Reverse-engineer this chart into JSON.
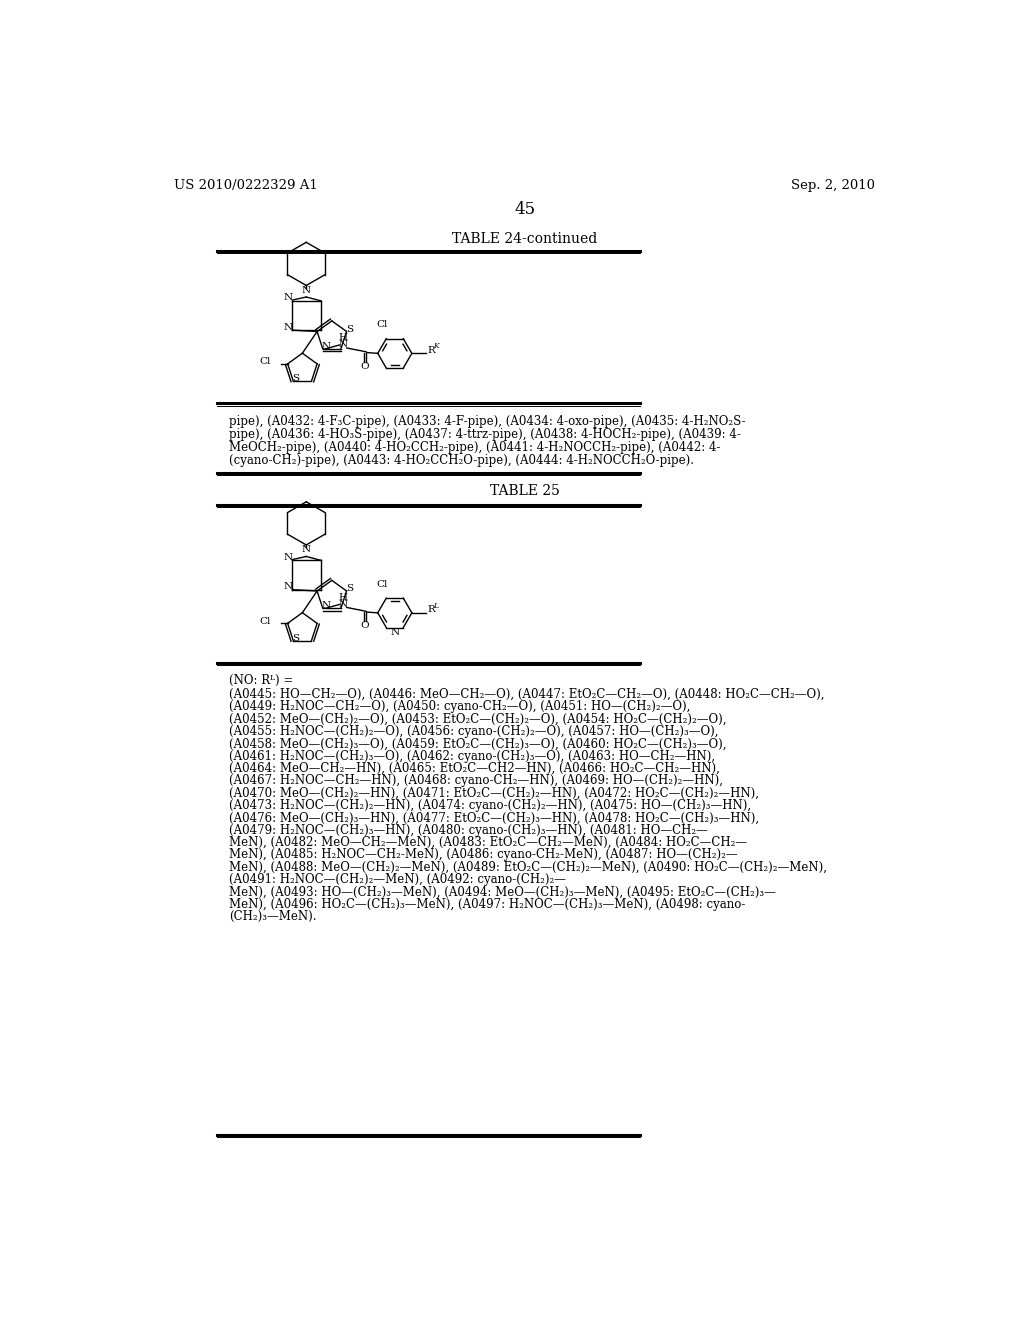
{
  "header_left": "US 2010/0222329 A1",
  "header_right": "Sep. 2, 2010",
  "page_number": "45",
  "table1_title": "TABLE 24-continued",
  "table2_title": "TABLE 25",
  "table1_lines": [
    "pipe), (A0432: 4-F₃C-pipe), (A0433: 4-F-pipe), (A0434: 4-oxo-pipe), (A0435: 4-H₂NO₂S-",
    "pipe), (A0436: 4-HO₃S-pipe), (A0437: 4-ttrz-pipe), (A0438: 4-HOCH₂-pipe), (A0439: 4-",
    "MeOCH₂-pipe), (A0440: 4-HO₂CCH₂-pipe), (A0441: 4-H₂NOCCH₂-pipe), (A0442: 4-",
    "(cyano-CH₂)-pipe), (A0443: 4-HO₂CCH₂O-pipe), (A0444: 4-H₂NOCCH₂O-pipe)."
  ],
  "table2_header": "(NO: Rᴸ) =",
  "table2_text_lines": [
    "(A0445: HO—CH₂—O), (A0446: MeO—CH₂—O), (A0447: EtO₂C—CH₂—O), (A0448: HO₂C—CH₂—O),",
    "(A0449: H₂NOC—CH₂—O), (A0450: cyano-CH₂—O), (A0451: HO—(CH₂)₂—O),",
    "(A0452: MeO—(CH₂)₂—O), (A0453: EtO₂C—(CH₂)₂—O), (A0454: HO₂C—(CH₂)₂—O),",
    "(A0455: H₂NOC—(CH₂)₂—O), (A0456: cyano-(CH₂)₂—O), (A0457: HO—(CH₂)₃—O),",
    "(A0458: MeO—(CH₂)₃—O), (A0459: EtO₂C—(CH₂)₃—O), (A0460: HO₂C—(CH₂)₃—O),",
    "(A0461: H₂NOC—(CH₂)₃—O), (A0462: cyano-(CH₂)₃—O), (A0463: HO—CH₂—HN),",
    "(A0464: MeO—CH₂—HN), (A0465: EtO₂C—CH2—HN), (A0466: HO₂C—CH₂—HN),",
    "(A0467: H₂NOC—CH₂—HN), (A0468: cyano-CH₂—HN), (A0469: HO—(CH₂)₂—HN),",
    "(A0470: MeO—(CH₂)₂—HN), (A0471: EtO₂C—(CH₂)₂—HN), (A0472: HO₂C—(CH₂)₂—HN),",
    "(A0473: H₂NOC—(CH₂)₂—HN), (A0474: cyano-(CH₂)₂—HN), (A0475: HO—(CH₂)₃—HN),",
    "(A0476: MeO—(CH₂)₃—HN), (A0477: EtO₂C—(CH₂)₃—HN), (A0478: HO₂C—(CH₂)₃—HN),",
    "(A0479: H₂NOC—(CH₂)₃—HN), (A0480: cyano-(CH₂)₃—HN), (A0481: HO—CH₂—",
    "MeN), (A0482: MeO—CH₂—MeN), (A0483: EtO₂C—CH₂—MeN), (A0484: HO₂C—CH₂—",
    "MeN), (A0485: H₂NOC—CH₂-MeN), (A0486: cyano-CH₂-MeN), (A0487: HO—(CH₂)₂—",
    "MeN), (A0488: MeO—(CH₂)₂—MeN), (A0489: EtO₂C—(CH₂)₂—MeN), (A0490: HO₂C—(CH₂)₂—MeN),",
    "(A0491: H₂NOC—(CH₂)₂—MeN), (A0492: cyano-(CH₂)₂—",
    "MeN), (A0493: HO—(CH₂)₃—MeN), (A0494: MeO—(CH₂)₃—MeN), (A0495: EtO₂C—(CH₂)₃—",
    "MeN), (A0496: HO₂C—(CH₂)₃—MeN), (A0497: H₂NOC—(CH₂)₃—MeN), (A0498: cyano-",
    "(CH₂)₃—MeN)."
  ],
  "bg_color": "#ffffff",
  "text_color": "#000000",
  "line_color": "#000000",
  "font_size_header": 9.5,
  "font_size_table_title": 10,
  "font_size_body": 8.5
}
